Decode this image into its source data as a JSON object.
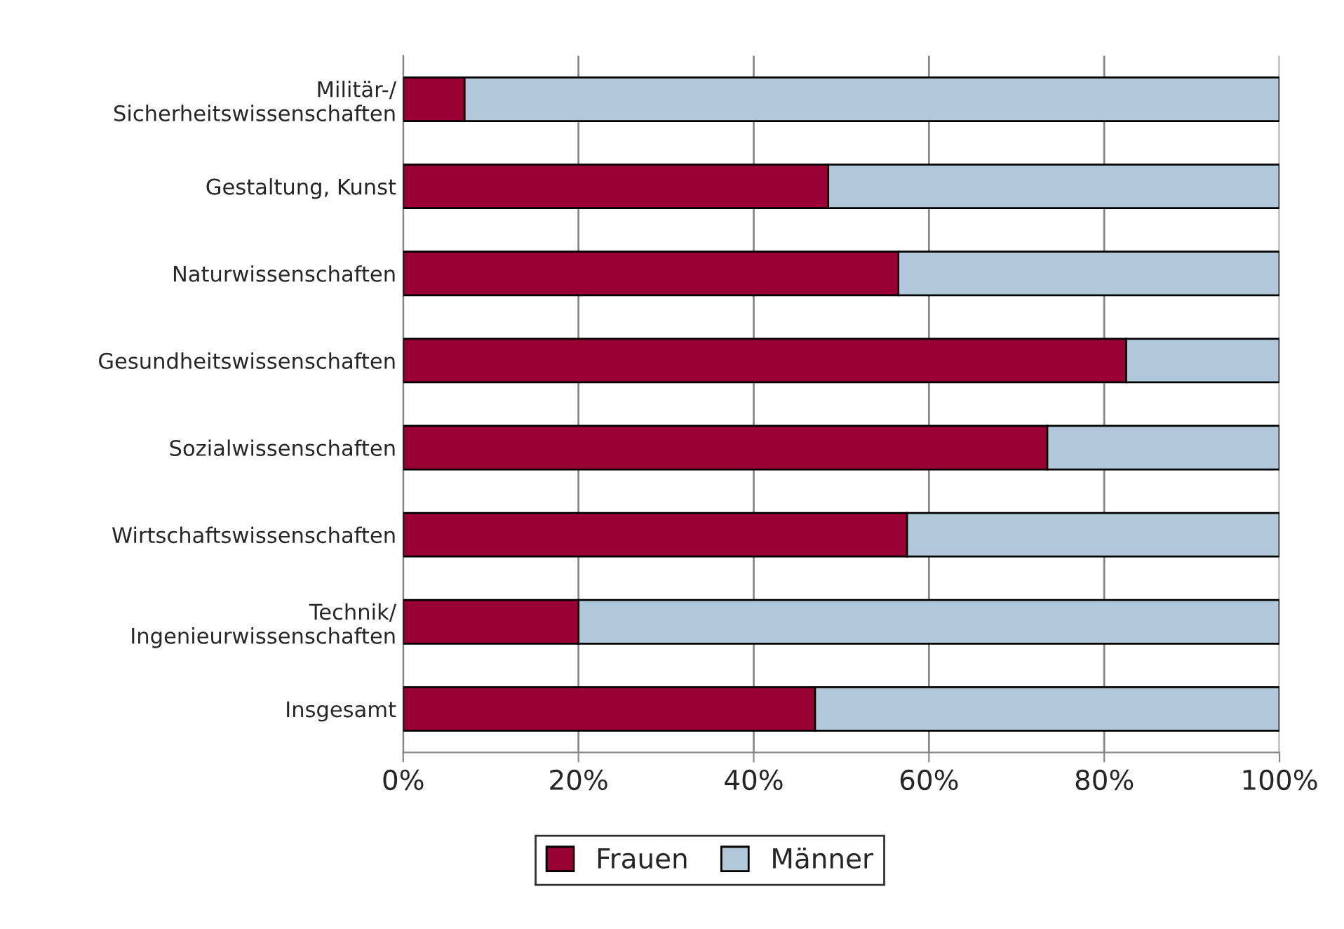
{
  "chart_data": {
    "type": "bar",
    "orientation": "horizontal",
    "stacked": true,
    "categories": [
      "Militär-/\nSicherheitswissenschaften",
      "Gestaltung, Kunst",
      "Naturwissenschaften",
      "Gesundheitswissenschaften",
      "Sozialwissenschaften",
      "Wirtschaftswissenschaften",
      "Technik/\nIngenieurwissenschaften",
      "Insgesamt"
    ],
    "series": [
      {
        "name": "Frauen",
        "color": "#990033",
        "values": [
          7,
          48.5,
          56.5,
          82.5,
          73.5,
          57.5,
          20,
          47
        ]
      },
      {
        "name": "Männer",
        "color": "#b0c8d9",
        "values": [
          93,
          51.5,
          43.5,
          17.5,
          26.5,
          42.5,
          80,
          53
        ]
      }
    ],
    "xlim": [
      0,
      100
    ],
    "xticks": [
      {
        "value": 0,
        "label": "0%"
      },
      {
        "value": 20,
        "label": "20%"
      },
      {
        "value": 40,
        "label": "40%"
      },
      {
        "value": 60,
        "label": "60%"
      },
      {
        "value": 80,
        "label": "80%"
      },
      {
        "value": 100,
        "label": "100%"
      }
    ],
    "grid": "x",
    "legend": "bottom"
  }
}
